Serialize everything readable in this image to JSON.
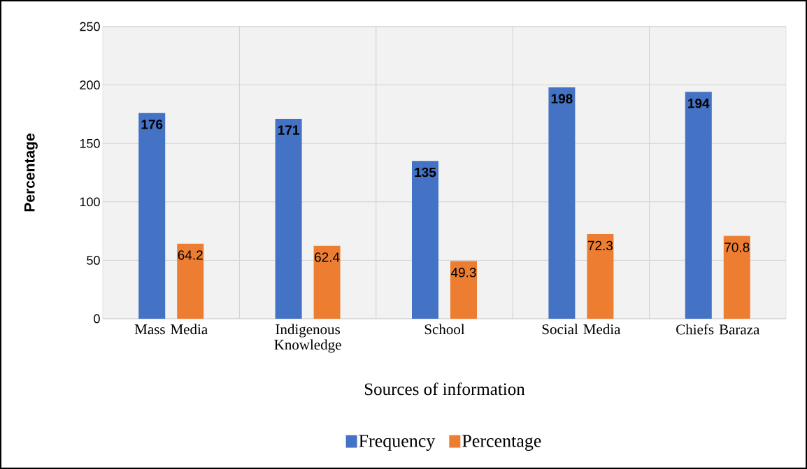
{
  "chart_data": {
    "type": "bar",
    "xlabel": "Sources of information",
    "ylabel": "Percentage",
    "categories": [
      "Mass Media",
      "Indigenous Knowledge",
      "School",
      "Social Media",
      "Chiefs Baraza"
    ],
    "series": [
      {
        "name": "Frequency",
        "color": "#4472c4",
        "values": [
          176,
          171,
          135,
          198,
          194
        ]
      },
      {
        "name": "Percentage",
        "color": "#ed7d31",
        "values": [
          64.2,
          62.4,
          49.3,
          72.3,
          70.8
        ]
      }
    ],
    "ylim": [
      0,
      250
    ],
    "yticks": [
      0,
      50,
      100,
      150,
      200,
      250
    ],
    "grid": true,
    "legend": "bottom",
    "data_labels": true
  }
}
